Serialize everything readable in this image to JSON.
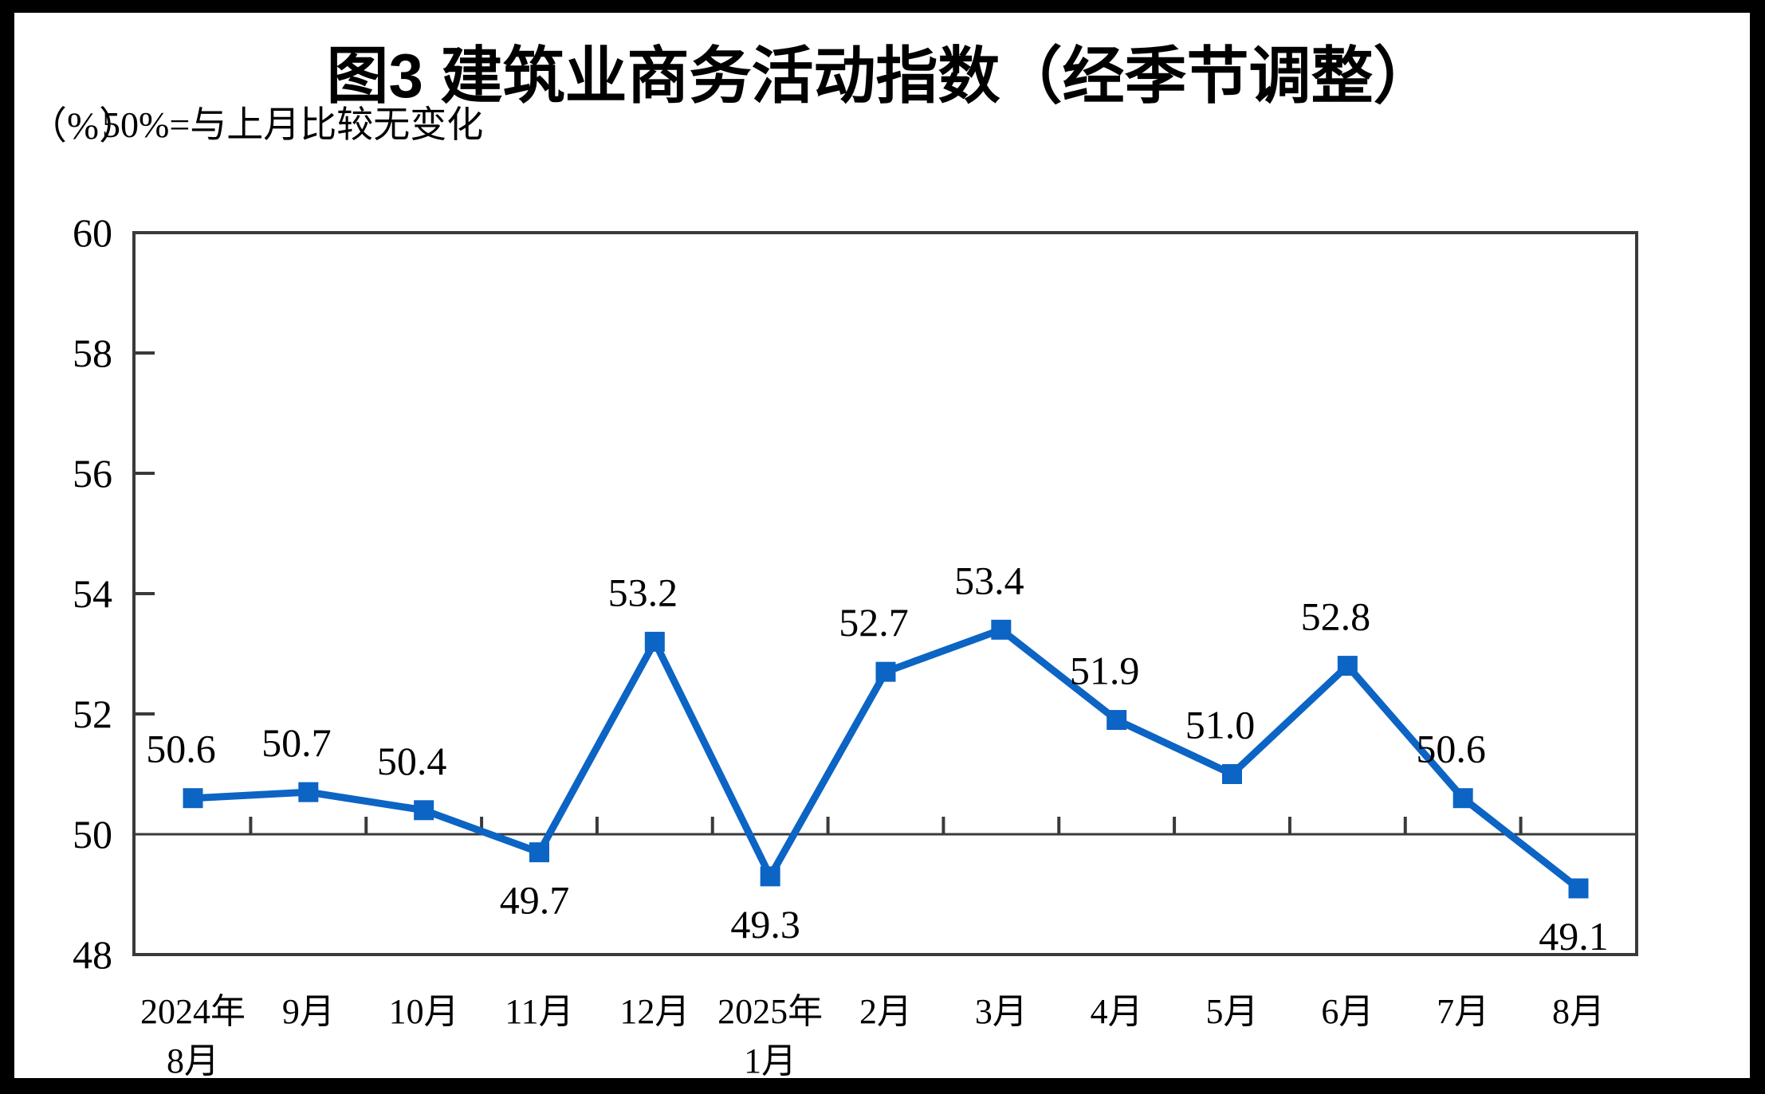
{
  "figure": {
    "title": "图3  建筑业商务活动指数（经季节调整）",
    "unit_label": "（%）",
    "subtitle": "50%=与上月比较无变化"
  },
  "chart_data": {
    "type": "line",
    "title": "图3 建筑业商务活动指数（经季节调整）",
    "subtitle": "50%=与上月比较无变化",
    "ylabel": "（%）",
    "categories": [
      [
        "2024年",
        "8月"
      ],
      [
        "9月"
      ],
      [
        "10月"
      ],
      [
        "11月"
      ],
      [
        "12月"
      ],
      [
        "2025年",
        "1月"
      ],
      [
        "2月"
      ],
      [
        "3月"
      ],
      [
        "4月"
      ],
      [
        "5月"
      ],
      [
        "6月"
      ],
      [
        "7月"
      ],
      [
        "8月"
      ]
    ],
    "values": [
      50.6,
      50.7,
      50.4,
      49.7,
      53.2,
      49.3,
      52.7,
      53.4,
      51.9,
      51.0,
      52.8,
      50.6,
      49.1
    ],
    "data_label_position": [
      "above",
      "above",
      "above",
      "below",
      "above",
      "below",
      "above",
      "above",
      "above",
      "above",
      "above",
      "above",
      "below"
    ],
    "ylim": [
      48,
      60
    ],
    "yticks": [
      48,
      50,
      52,
      54,
      56,
      58,
      60
    ],
    "inner_yticks": [
      52,
      54,
      56,
      58
    ],
    "reference_line": 50,
    "grid": "off",
    "legend": "none",
    "colors": {
      "line": "#0C64C4",
      "marker": "#0C64C4",
      "axis": "#3A3A3A",
      "text": "#000000",
      "background": "#FFFFFF",
      "page_border": "#000000"
    }
  }
}
